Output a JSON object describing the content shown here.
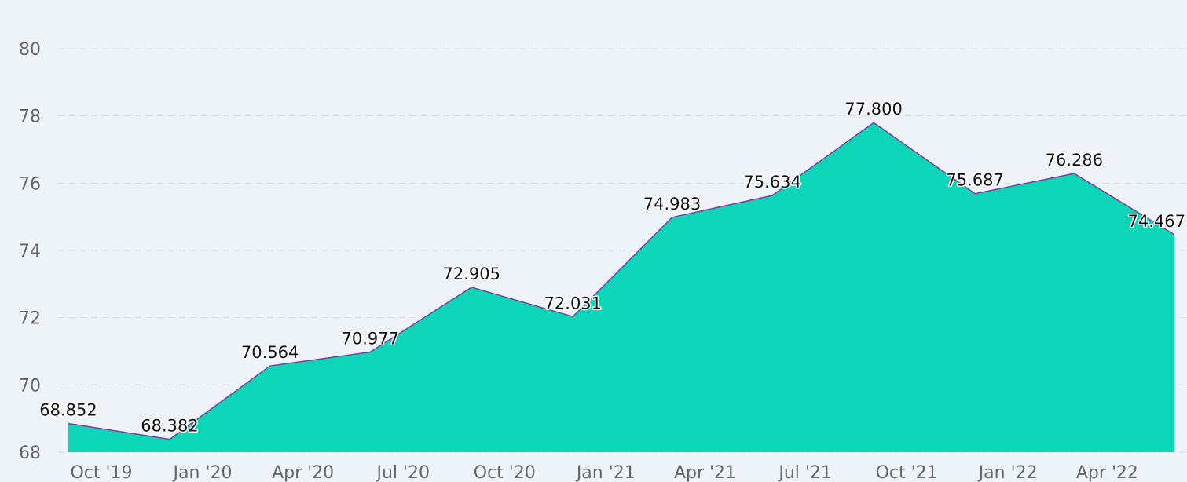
{
  "chart_data": {
    "type": "area",
    "x": [
      "2019-10-01",
      "2020-01-01",
      "2020-04-01",
      "2020-07-01",
      "2020-10-01",
      "2021-01-01",
      "2021-04-01",
      "2021-07-01",
      "2021-10-01",
      "2022-01-01",
      "2022-04-01",
      "2022-07-01"
    ],
    "x_tick_labels": [
      "Oct '19",
      "Jan '20",
      "Apr '20",
      "Jul '20",
      "Oct '20",
      "Jan '21",
      "Apr '21",
      "Jul '21",
      "Oct '21",
      "Jan '22",
      "Apr '22"
    ],
    "series": [
      {
        "values": [
          68.852,
          68.382,
          70.564,
          70.977,
          72.905,
          72.031,
          74.983,
          75.634,
          77.8,
          75.687,
          76.286,
          74.467
        ],
        "labels": [
          "68.852",
          "68.382",
          "70.564",
          "70.977",
          "72.905",
          "72.031",
          "74.983",
          "75.634",
          "77.800",
          "75.687",
          "76.286",
          "74.467"
        ]
      }
    ],
    "y_ticks": [
      "68",
      "70",
      "72",
      "74",
      "76",
      "78",
      "80"
    ],
    "ylim": [
      68,
      80
    ],
    "grid": true,
    "legend": "none",
    "title": "",
    "xlabel": "",
    "ylabel": "",
    "colors": {
      "fill": "#0dd5b8",
      "line": "#7b3f9e",
      "grid": "#d7dde6",
      "background": "#eef3fa"
    }
  }
}
